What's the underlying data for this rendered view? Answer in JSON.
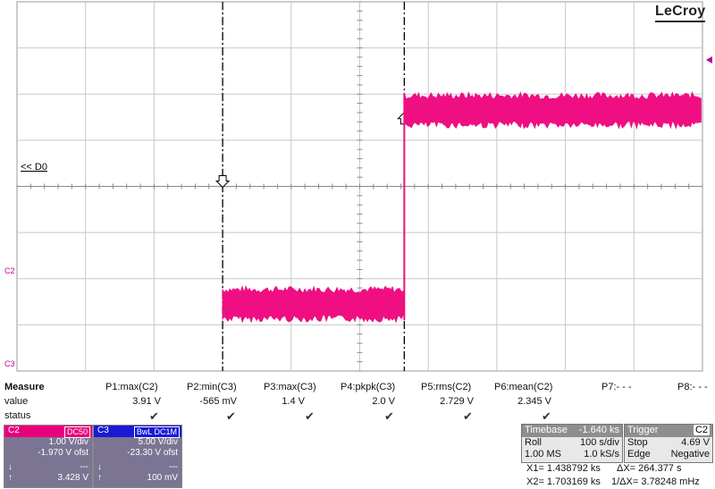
{
  "brand": "LeCroy",
  "reference_label": "<< D0",
  "channel_labels": {
    "c2": "C2",
    "c3": "C3"
  },
  "colors": {
    "trace": "#ef0f83",
    "c2_panel": "#e8007a",
    "c3_panel": "#1a1ad6",
    "cursor": "#000000"
  },
  "measure": {
    "header": "Measure",
    "row_labels": [
      "value",
      "status"
    ],
    "params": [
      {
        "name": "P1:max(C2)",
        "value": "3.91 V",
        "status": "check"
      },
      {
        "name": "P2:min(C3)",
        "value": "-565 mV",
        "status": "check"
      },
      {
        "name": "P3:max(C3)",
        "value": "1.4 V",
        "status": "check"
      },
      {
        "name": "P4:pkpk(C3)",
        "value": "2.0 V",
        "status": "check"
      },
      {
        "name": "P5:rms(C2)",
        "value": "2.729 V",
        "status": "check"
      },
      {
        "name": "P6:mean(C2)",
        "value": "2.345 V",
        "status": "check"
      },
      {
        "name": "P7:- - -",
        "value": "",
        "status": ""
      },
      {
        "name": "P8:- - -",
        "value": "",
        "status": ""
      }
    ]
  },
  "c2_panel": {
    "label": "C2",
    "coupling": "DC50",
    "scale": "1.00 V/div",
    "offset": "-1.970 V ofst",
    "down_value": "---",
    "up_value": "3.428 V"
  },
  "c3_panel": {
    "label": "C3",
    "coupling": "BwL DC1M",
    "scale": "5.00 V/div",
    "offset": "-23.30 V ofst",
    "down_value": "---",
    "up_value": "100 mV"
  },
  "timebase": {
    "title": "Timebase",
    "delay": "-1.640 ks",
    "mode": "Roll",
    "tdiv": "100 s/div",
    "samples": "1.00 MS",
    "rate": "1.0 kS/s"
  },
  "trigger": {
    "title": "Trigger",
    "channel": "C2",
    "state": "Stop",
    "level": "4.69 V",
    "type": "Edge",
    "slope": "Negative"
  },
  "cursors": {
    "x1": "X1= 1.438792 ks",
    "dx": "ΔX= 264.377 s",
    "x2": "X2= 1.703169 ks",
    "inv_dx": "1/ΔX= 3.78248 mHz"
  },
  "trace": {
    "segments": [
      {
        "from_div": 0,
        "to_div": 3,
        "level_div": null
      },
      {
        "from_div": 3.0,
        "to_div": 5.65,
        "level_div": 1.45
      },
      {
        "from_div": 5.65,
        "to_div": 10,
        "level_div": 5.65
      }
    ]
  }
}
